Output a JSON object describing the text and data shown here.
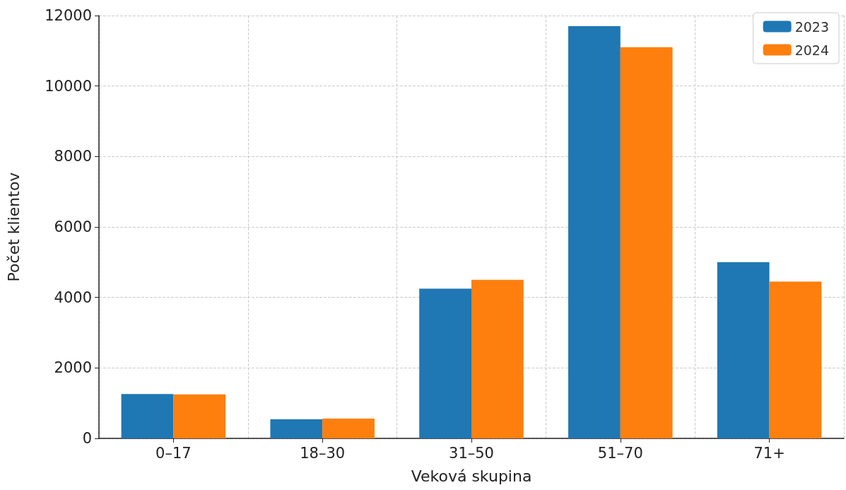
{
  "chart_data": {
    "type": "bar",
    "xlabel": "Veková skupina",
    "ylabel": "Počet klientov",
    "categories": [
      "0–17",
      "18–30",
      "31–50",
      "51–70",
      "71+"
    ],
    "series": [
      {
        "name": "2023",
        "color": "#1f77b4",
        "values": [
          1260,
          540,
          4250,
          11700,
          5000
        ]
      },
      {
        "name": "2024",
        "color": "#ff7f0e",
        "values": [
          1250,
          560,
          4500,
          11100,
          4450
        ]
      }
    ],
    "ylim": [
      0,
      12000
    ],
    "yticks": [
      0,
      2000,
      4000,
      6000,
      8000,
      10000,
      12000
    ],
    "grid": true,
    "legend": "top right"
  }
}
